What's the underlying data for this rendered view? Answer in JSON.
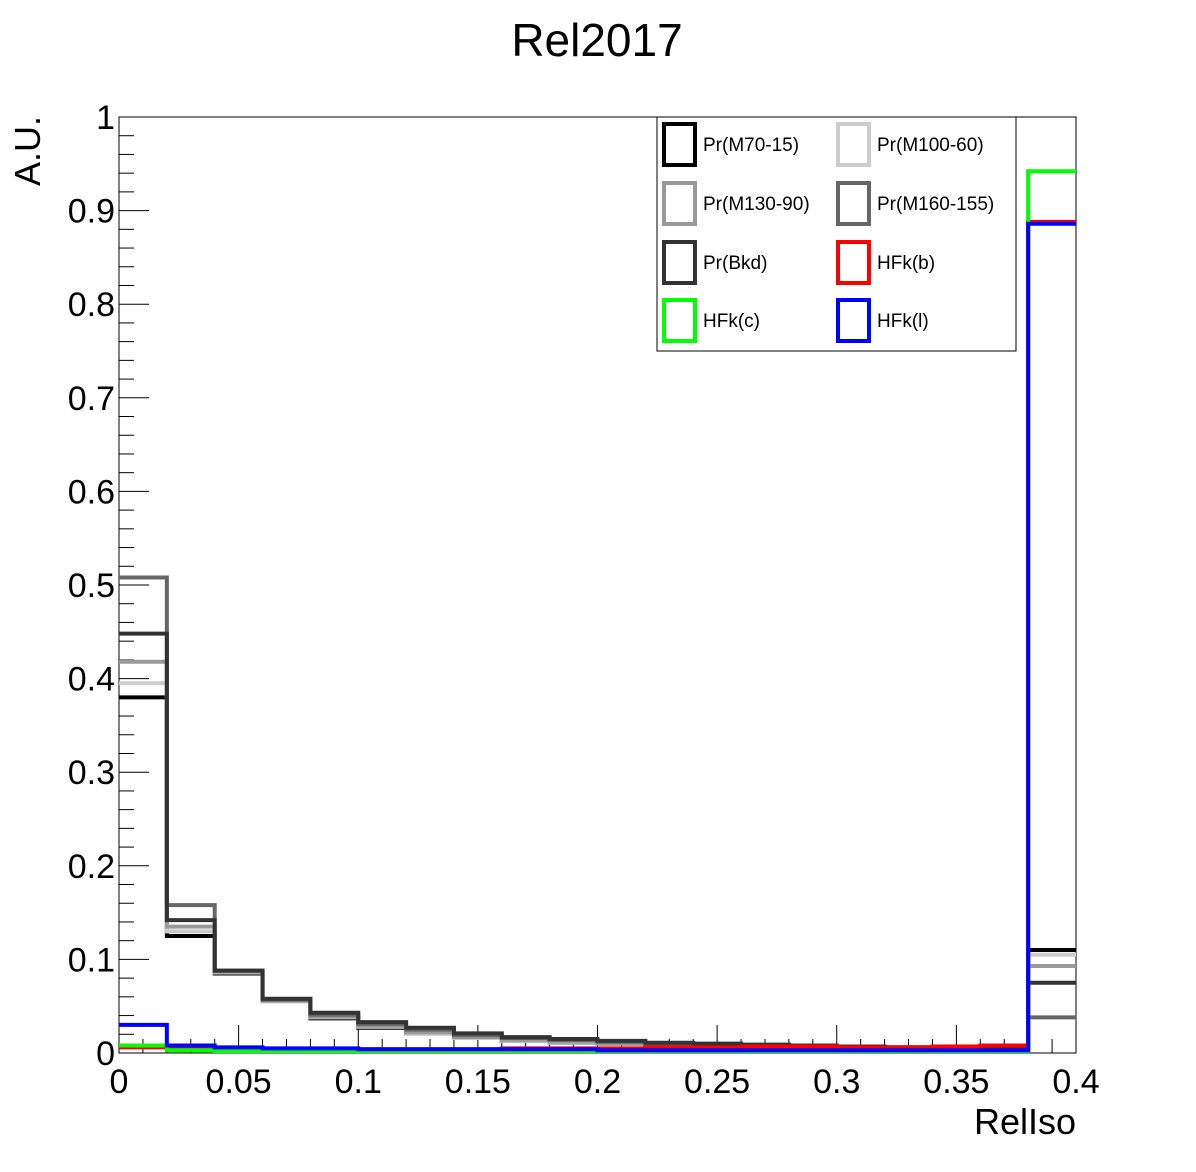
{
  "chart_data": {
    "type": "line",
    "title": "Rel2017",
    "xlabel": "RelIso",
    "ylabel": "A.U.",
    "xlim": [
      0,
      0.4
    ],
    "ylim": [
      0,
      1
    ],
    "grid": false,
    "legend_position": "top-right",
    "x_ticks": [
      "0",
      "0.05",
      "0.1",
      "0.15",
      "0.2",
      "0.25",
      "0.3",
      "0.35",
      "0.4"
    ],
    "y_ticks": [
      "0",
      "0.1",
      "0.2",
      "0.3",
      "0.4",
      "0.5",
      "0.6",
      "0.7",
      "0.8",
      "0.9",
      "1"
    ],
    "bin_edges": [
      0,
      0.02,
      0.04,
      0.06,
      0.08,
      0.1,
      0.12,
      0.14,
      0.16,
      0.18,
      0.2,
      0.22,
      0.24,
      0.26,
      0.28,
      0.3,
      0.32,
      0.34,
      0.36,
      0.38,
      0.4
    ],
    "series": [
      {
        "name": "Pr(M70-15)",
        "color": "#000000",
        "values": [
          0.38,
          0.125,
          0.085,
          0.055,
          0.037,
          0.027,
          0.021,
          0.016,
          0.013,
          0.011,
          0.01,
          0.009,
          0.008,
          0.007,
          0.007,
          0.006,
          0.006,
          0.005,
          0.005,
          0.11
        ]
      },
      {
        "name": "Pr(M100-60)",
        "color": "#cccccc",
        "values": [
          0.395,
          0.13,
          0.086,
          0.055,
          0.038,
          0.028,
          0.021,
          0.016,
          0.013,
          0.011,
          0.01,
          0.009,
          0.008,
          0.007,
          0.007,
          0.006,
          0.006,
          0.005,
          0.005,
          0.105
        ]
      },
      {
        "name": "Pr(M130-90)",
        "color": "#999999",
        "values": [
          0.418,
          0.135,
          0.087,
          0.056,
          0.039,
          0.029,
          0.022,
          0.017,
          0.014,
          0.012,
          0.01,
          0.009,
          0.008,
          0.007,
          0.007,
          0.006,
          0.006,
          0.005,
          0.005,
          0.093
        ]
      },
      {
        "name": "Pr(M160-155)",
        "color": "#666666",
        "values": [
          0.508,
          0.158,
          0.088,
          0.057,
          0.041,
          0.031,
          0.025,
          0.019,
          0.016,
          0.014,
          0.012,
          0.01,
          0.009,
          0.008,
          0.007,
          0.006,
          0.006,
          0.005,
          0.005,
          0.038
        ]
      },
      {
        "name": "Pr(Bkd)",
        "color": "#333333",
        "values": [
          0.448,
          0.142,
          0.088,
          0.058,
          0.043,
          0.033,
          0.027,
          0.021,
          0.017,
          0.015,
          0.013,
          0.011,
          0.01,
          0.009,
          0.008,
          0.007,
          0.006,
          0.006,
          0.005,
          0.075
        ]
      },
      {
        "name": "HFk(b)",
        "color": "#ff0000",
        "values": [
          0.006,
          0.004,
          0.004,
          0.004,
          0.004,
          0.004,
          0.004,
          0.004,
          0.005,
          0.005,
          0.005,
          0.006,
          0.006,
          0.007,
          0.007,
          0.006,
          0.006,
          0.007,
          0.008,
          0.888
        ]
      },
      {
        "name": "HFk(c)",
        "color": "#00ff00",
        "values": [
          0.008,
          0.003,
          0.002,
          0.002,
          0.002,
          0.002,
          0.002,
          0.002,
          0.002,
          0.002,
          0.002,
          0.002,
          0.002,
          0.002,
          0.002,
          0.002,
          0.002,
          0.002,
          0.002,
          0.942
        ]
      },
      {
        "name": "HFk(l)",
        "color": "#0000ff",
        "values": [
          0.03,
          0.008,
          0.006,
          0.005,
          0.005,
          0.004,
          0.004,
          0.004,
          0.004,
          0.004,
          0.003,
          0.003,
          0.003,
          0.003,
          0.003,
          0.003,
          0.003,
          0.003,
          0.003,
          0.886
        ]
      }
    ]
  }
}
